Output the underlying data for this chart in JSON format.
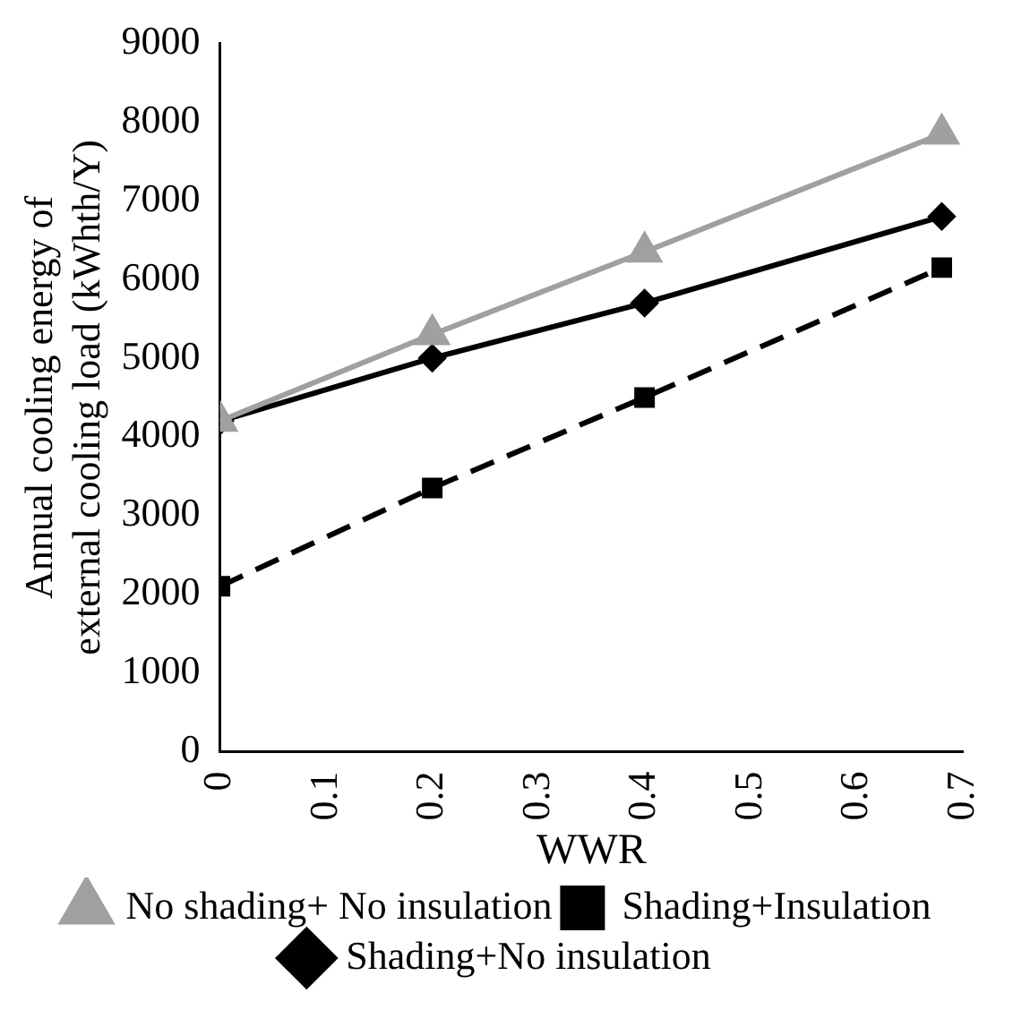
{
  "chart_data": {
    "type": "line",
    "xlabel": "WWR",
    "ylabel": "Annual cooling energy of external cooling load (kWhth/Y)",
    "x": [
      0,
      0.2,
      0.4,
      0.68
    ],
    "series": [
      {
        "name": "Shading+No insulation",
        "color": "#000000",
        "values": [
          4200,
          5000,
          5700,
          6800
        ],
        "marker": "diamond",
        "line_style": "solid"
      },
      {
        "name": "Shading+Insulation",
        "color": "#000000",
        "values": [
          2100,
          3350,
          4500,
          6150
        ],
        "marker": "square",
        "line_style": "dashed"
      },
      {
        "name": "No shading+ No insulation",
        "color": "#a0a0a0",
        "values": [
          4200,
          5300,
          6350,
          7850
        ],
        "marker": "triangle",
        "line_style": "solid"
      }
    ],
    "xlim": [
      0,
      0.7
    ],
    "xticks": [
      0,
      0.1,
      0.2,
      0.3,
      0.4,
      0.5,
      0.6,
      0.7
    ],
    "ylim": [
      0,
      9000
    ],
    "yticks": [
      0,
      1000,
      2000,
      3000,
      4000,
      5000,
      6000,
      7000,
      8000,
      9000
    ],
    "grid": false,
    "legend": "bottom"
  }
}
